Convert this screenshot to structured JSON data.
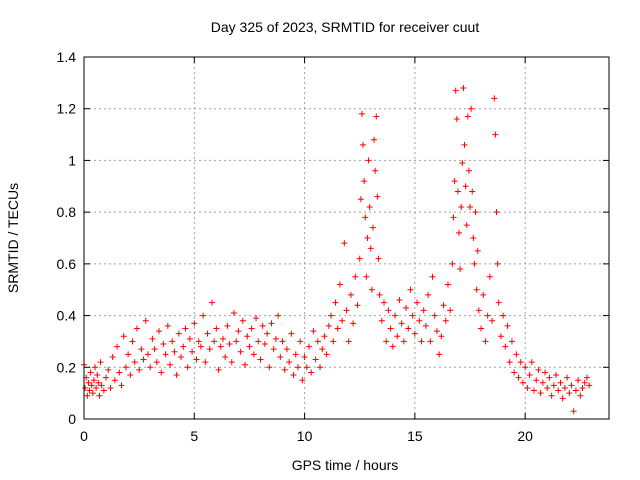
{
  "chart_data": {
    "type": "scatter",
    "title": "Day 325 of 2023, SRMTID for receiver cuut",
    "xlabel": "GPS time / hours",
    "ylabel": "SRMTID / TECUs",
    "xlim": [
      0,
      23.8
    ],
    "ylim": [
      0,
      1.4
    ],
    "x_ticks": [
      0,
      5,
      10,
      15,
      20
    ],
    "x_tick_labels": [
      "0",
      "5",
      "10",
      "15",
      "20"
    ],
    "y_ticks": [
      0,
      0.2,
      0.4,
      0.6,
      0.8,
      1.0,
      1.2,
      1.4
    ],
    "y_tick_labels": [
      "0",
      "0.2",
      "0.4",
      "0.6",
      "0.8",
      "1",
      "1.2",
      "1.4"
    ],
    "grid": true,
    "marker": "+",
    "color": "#ff0000",
    "series": [
      {
        "name": "cuut",
        "points": [
          [
            0.0,
            0.21
          ],
          [
            0.05,
            0.12
          ],
          [
            0.1,
            0.16
          ],
          [
            0.15,
            0.09
          ],
          [
            0.2,
            0.14
          ],
          [
            0.25,
            0.11
          ],
          [
            0.3,
            0.18
          ],
          [
            0.35,
            0.13
          ],
          [
            0.4,
            0.1
          ],
          [
            0.45,
            0.15
          ],
          [
            0.5,
            0.2
          ],
          [
            0.55,
            0.12
          ],
          [
            0.6,
            0.17
          ],
          [
            0.65,
            0.14
          ],
          [
            0.7,
            0.09
          ],
          [
            0.75,
            0.22
          ],
          [
            0.8,
            0.13
          ],
          [
            0.9,
            0.11
          ],
          [
            1.0,
            0.16
          ],
          [
            1.1,
            0.19
          ],
          [
            1.2,
            0.12
          ],
          [
            1.3,
            0.24
          ],
          [
            1.4,
            0.15
          ],
          [
            1.5,
            0.28
          ],
          [
            1.6,
            0.18
          ],
          [
            1.7,
            0.13
          ],
          [
            1.8,
            0.32
          ],
          [
            1.9,
            0.2
          ],
          [
            2.0,
            0.25
          ],
          [
            2.1,
            0.17
          ],
          [
            2.2,
            0.3
          ],
          [
            2.3,
            0.22
          ],
          [
            2.4,
            0.35
          ],
          [
            2.5,
            0.19
          ],
          [
            2.6,
            0.27
          ],
          [
            2.7,
            0.23
          ],
          [
            2.8,
            0.38
          ],
          [
            2.9,
            0.25
          ],
          [
            3.0,
            0.2
          ],
          [
            3.1,
            0.31
          ],
          [
            3.2,
            0.27
          ],
          [
            3.3,
            0.22
          ],
          [
            3.4,
            0.34
          ],
          [
            3.5,
            0.18
          ],
          [
            3.6,
            0.29
          ],
          [
            3.7,
            0.25
          ],
          [
            3.8,
            0.36
          ],
          [
            3.9,
            0.21
          ],
          [
            4.0,
            0.3
          ],
          [
            4.1,
            0.26
          ],
          [
            4.2,
            0.17
          ],
          [
            4.3,
            0.33
          ],
          [
            4.4,
            0.24
          ],
          [
            4.5,
            0.28
          ],
          [
            4.6,
            0.35
          ],
          [
            4.7,
            0.2
          ],
          [
            4.8,
            0.31
          ],
          [
            4.9,
            0.26
          ],
          [
            5.0,
            0.37
          ],
          [
            5.1,
            0.23
          ],
          [
            5.2,
            0.3
          ],
          [
            5.3,
            0.28
          ],
          [
            5.4,
            0.4
          ],
          [
            5.5,
            0.22
          ],
          [
            5.6,
            0.33
          ],
          [
            5.7,
            0.27
          ],
          [
            5.8,
            0.45
          ],
          [
            5.9,
            0.3
          ],
          [
            6.0,
            0.35
          ],
          [
            6.1,
            0.19
          ],
          [
            6.2,
            0.28
          ],
          [
            6.3,
            0.31
          ],
          [
            6.4,
            0.24
          ],
          [
            6.5,
            0.36
          ],
          [
            6.6,
            0.29
          ],
          [
            6.7,
            0.22
          ],
          [
            6.8,
            0.41
          ],
          [
            6.9,
            0.3
          ],
          [
            7.0,
            0.34
          ],
          [
            7.1,
            0.26
          ],
          [
            7.2,
            0.38
          ],
          [
            7.3,
            0.21
          ],
          [
            7.4,
            0.32
          ],
          [
            7.5,
            0.28
          ],
          [
            7.6,
            0.35
          ],
          [
            7.7,
            0.25
          ],
          [
            7.8,
            0.39
          ],
          [
            7.9,
            0.3
          ],
          [
            8.0,
            0.23
          ],
          [
            8.1,
            0.36
          ],
          [
            8.2,
            0.29
          ],
          [
            8.3,
            0.33
          ],
          [
            8.4,
            0.2
          ],
          [
            8.5,
            0.37
          ],
          [
            8.6,
            0.27
          ],
          [
            8.7,
            0.31
          ],
          [
            8.8,
            0.4
          ],
          [
            8.9,
            0.24
          ],
          [
            9.0,
            0.3
          ],
          [
            9.1,
            0.19
          ],
          [
            9.2,
            0.27
          ],
          [
            9.3,
            0.22
          ],
          [
            9.4,
            0.33
          ],
          [
            9.5,
            0.17
          ],
          [
            9.6,
            0.25
          ],
          [
            9.7,
            0.2
          ],
          [
            9.8,
            0.3
          ],
          [
            9.9,
            0.15
          ],
          [
            10.0,
            0.24
          ],
          [
            10.1,
            0.2
          ],
          [
            10.2,
            0.28
          ],
          [
            10.3,
            0.18
          ],
          [
            10.4,
            0.34
          ],
          [
            10.5,
            0.23
          ],
          [
            10.6,
            0.3
          ],
          [
            10.7,
            0.2
          ],
          [
            10.8,
            0.27
          ],
          [
            10.9,
            0.32
          ],
          [
            11.0,
            0.25
          ],
          [
            11.1,
            0.36
          ],
          [
            11.2,
            0.4
          ],
          [
            11.3,
            0.3
          ],
          [
            11.4,
            0.45
          ],
          [
            11.5,
            0.35
          ],
          [
            11.6,
            0.52
          ],
          [
            11.7,
            0.38
          ],
          [
            11.8,
            0.68
          ],
          [
            11.9,
            0.42
          ],
          [
            12.0,
            0.3
          ],
          [
            12.1,
            0.48
          ],
          [
            12.2,
            0.37
          ],
          [
            12.3,
            0.55
          ],
          [
            12.4,
            0.44
          ],
          [
            12.5,
            0.62
          ],
          [
            12.55,
            0.85
          ],
          [
            12.6,
            1.18
          ],
          [
            12.65,
            1.06
          ],
          [
            12.7,
            0.92
          ],
          [
            12.75,
            0.78
          ],
          [
            12.8,
            0.55
          ],
          [
            12.85,
            0.7
          ],
          [
            12.9,
            1.0
          ],
          [
            12.95,
            0.82
          ],
          [
            13.0,
            0.66
          ],
          [
            13.05,
            0.5
          ],
          [
            13.1,
            0.74
          ],
          [
            13.15,
            1.08
          ],
          [
            13.2,
            0.96
          ],
          [
            13.25,
            1.17
          ],
          [
            13.3,
            0.86
          ],
          [
            13.35,
            0.62
          ],
          [
            13.4,
            0.48
          ],
          [
            13.5,
            0.38
          ],
          [
            13.6,
            0.45
          ],
          [
            13.7,
            0.3
          ],
          [
            13.8,
            0.42
          ],
          [
            13.9,
            0.35
          ],
          [
            14.0,
            0.28
          ],
          [
            14.1,
            0.4
          ],
          [
            14.2,
            0.32
          ],
          [
            14.3,
            0.46
          ],
          [
            14.4,
            0.37
          ],
          [
            14.5,
            0.3
          ],
          [
            14.6,
            0.43
          ],
          [
            14.7,
            0.35
          ],
          [
            14.8,
            0.5
          ],
          [
            14.9,
            0.4
          ],
          [
            15.0,
            0.33
          ],
          [
            15.1,
            0.45
          ],
          [
            15.2,
            0.38
          ],
          [
            15.3,
            0.3
          ],
          [
            15.4,
            0.42
          ],
          [
            15.5,
            0.36
          ],
          [
            15.6,
            0.48
          ],
          [
            15.7,
            0.3
          ],
          [
            15.8,
            0.55
          ],
          [
            15.9,
            0.4
          ],
          [
            16.0,
            0.34
          ],
          [
            16.1,
            0.25
          ],
          [
            16.2,
            0.32
          ],
          [
            16.3,
            0.44
          ],
          [
            16.4,
            0.38
          ],
          [
            16.5,
            0.52
          ],
          [
            16.6,
            0.42
          ],
          [
            16.7,
            0.6
          ],
          [
            16.75,
            0.78
          ],
          [
            16.8,
            0.92
          ],
          [
            16.85,
            1.27
          ],
          [
            16.9,
            1.16
          ],
          [
            16.95,
            0.88
          ],
          [
            17.0,
            0.72
          ],
          [
            17.05,
            0.58
          ],
          [
            17.1,
            0.82
          ],
          [
            17.15,
            0.99
          ],
          [
            17.2,
            1.28
          ],
          [
            17.25,
            1.06
          ],
          [
            17.3,
            0.9
          ],
          [
            17.35,
            0.75
          ],
          [
            17.4,
            1.17
          ],
          [
            17.45,
            0.96
          ],
          [
            17.5,
            0.82
          ],
          [
            17.55,
            1.2
          ],
          [
            17.6,
            0.88
          ],
          [
            17.65,
            0.7
          ],
          [
            17.7,
            0.6
          ],
          [
            17.75,
            0.8
          ],
          [
            17.8,
            0.5
          ],
          [
            17.85,
            0.65
          ],
          [
            17.9,
            0.42
          ],
          [
            18.0,
            0.35
          ],
          [
            18.1,
            0.48
          ],
          [
            18.2,
            0.3
          ],
          [
            18.3,
            0.4
          ],
          [
            18.4,
            0.55
          ],
          [
            18.5,
            0.38
          ],
          [
            18.6,
            1.24
          ],
          [
            18.65,
            1.1
          ],
          [
            18.7,
            0.8
          ],
          [
            18.75,
            0.6
          ],
          [
            18.8,
            0.45
          ],
          [
            18.9,
            0.32
          ],
          [
            19.0,
            0.4
          ],
          [
            19.1,
            0.28
          ],
          [
            19.2,
            0.36
          ],
          [
            19.3,
            0.22
          ],
          [
            19.4,
            0.3
          ],
          [
            19.5,
            0.18
          ],
          [
            19.6,
            0.25
          ],
          [
            19.7,
            0.16
          ],
          [
            19.8,
            0.22
          ],
          [
            19.9,
            0.14
          ],
          [
            20.0,
            0.2
          ],
          [
            20.1,
            0.12
          ],
          [
            20.2,
            0.17
          ],
          [
            20.3,
            0.22
          ],
          [
            20.4,
            0.11
          ],
          [
            20.5,
            0.15
          ],
          [
            20.6,
            0.19
          ],
          [
            20.7,
            0.1
          ],
          [
            20.8,
            0.14
          ],
          [
            20.9,
            0.18
          ],
          [
            21.0,
            0.12
          ],
          [
            21.1,
            0.16
          ],
          [
            21.2,
            0.09
          ],
          [
            21.3,
            0.13
          ],
          [
            21.4,
            0.17
          ],
          [
            21.5,
            0.11
          ],
          [
            21.6,
            0.14
          ],
          [
            21.7,
            0.08
          ],
          [
            21.8,
            0.12
          ],
          [
            21.9,
            0.16
          ],
          [
            22.0,
            0.1
          ],
          [
            22.1,
            0.13
          ],
          [
            22.2,
            0.03
          ],
          [
            22.3,
            0.11
          ],
          [
            22.4,
            0.15
          ],
          [
            22.5,
            0.09
          ],
          [
            22.6,
            0.12
          ],
          [
            22.7,
            0.14
          ],
          [
            22.8,
            0.16
          ],
          [
            22.9,
            0.13
          ]
        ]
      }
    ]
  }
}
